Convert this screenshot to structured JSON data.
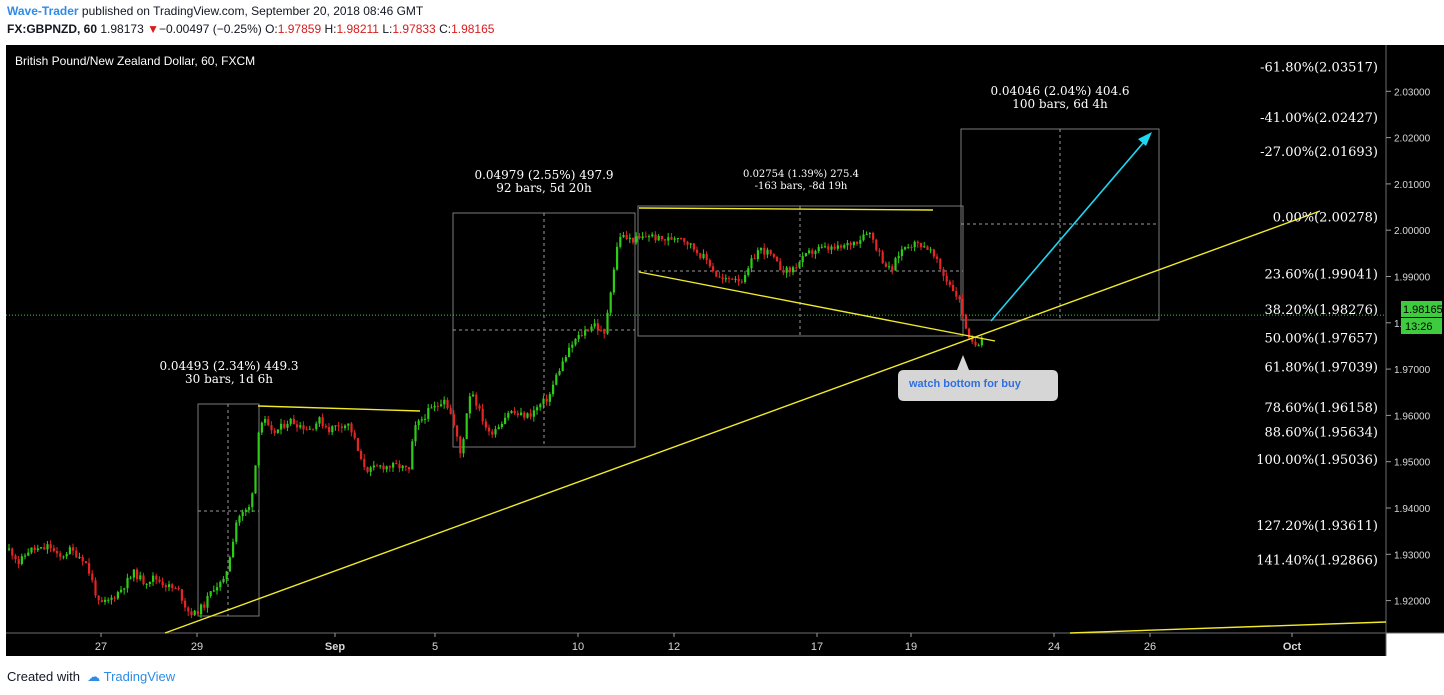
{
  "header": {
    "author": "Wave-Trader",
    "published_text": " published on TradingView.com, September 20, 2018 08:46 GMT",
    "symbol": "FX:GBPNZD, 60",
    "last": "1.98173",
    "change": "−0.00497 (−0.25%)",
    "open_label": "O:",
    "open": "1.97859",
    "high_label": "H:",
    "high": "1.98211",
    "low_label": "L:",
    "low": "1.97833",
    "close_label": "C:",
    "close": "1.98165"
  },
  "footer": {
    "created_with": "Created with",
    "brand": "TradingView"
  },
  "colors": {
    "background": "#000000",
    "up": "#2ecc18",
    "down": "#e32525",
    "trend": "#f0ea2a",
    "arrow": "#1fd6f0",
    "price_line": "#3ecb3e",
    "grid_text": "#d8d8d8",
    "annotation": "#ffffff"
  },
  "chart_data": {
    "type": "candlestick",
    "title": "British Pound/New Zealand Dollar, 60, FXCM",
    "ylim": [
      1.913,
      2.04
    ],
    "y_ticks": [
      "2.03000",
      "2.02000",
      "2.01000",
      "2.00000",
      "1.99000",
      "1.98000",
      "1.97000",
      "1.96000",
      "1.95000",
      "1.94000",
      "1.93000",
      "1.92000"
    ],
    "x_ticks": [
      "27",
      "29",
      "Sep",
      "5",
      "10",
      "12",
      "17",
      "19",
      "24",
      "26",
      "Oct"
    ],
    "price_label": "1.98165",
    "countdown_label": "13:26",
    "fib_levels": [
      {
        "label": "-61.80%(2.03517)",
        "value": 2.03517
      },
      {
        "label": "-41.00%(2.02427)",
        "value": 2.02427
      },
      {
        "label": "-27.00%(2.01693)",
        "value": 2.01693
      },
      {
        "label": "0.00%(2.00278)",
        "value": 2.00278
      },
      {
        "label": "23.60%(1.99041)",
        "value": 1.99041
      },
      {
        "label": "38.20%(1.98276)",
        "value": 1.98276
      },
      {
        "label": "50.00%(1.97657)",
        "value": 1.97657
      },
      {
        "label": "61.80%(1.97039)",
        "value": 1.97039
      },
      {
        "label": "78.60%(1.96158)",
        "value": 1.96158
      },
      {
        "label": "88.60%(1.95634)",
        "value": 1.95634
      },
      {
        "label": "100.00%(1.95036)",
        "value": 1.95036
      },
      {
        "label": "127.20%(1.93611)",
        "value": 1.93611
      },
      {
        "label": "141.40%(1.92866)",
        "value": 1.92866
      }
    ],
    "measurements": [
      {
        "line1": "0.04493 (2.34%) 449.3",
        "line2": "30 bars, 1d 6h"
      },
      {
        "line1": "0.04979 (2.55%) 497.9",
        "line2": "92 bars, 5d 20h"
      },
      {
        "line1": "0.02754 (1.39%) 275.4",
        "line2": "-163 bars, -8d 19h"
      },
      {
        "line1": "0.04046 (2.04%) 404.6",
        "line2": "100 bars, 6d 4h"
      }
    ],
    "callout": "watch bottom for buy",
    "path": [
      [
        0,
        1.931
      ],
      [
        5,
        1.93
      ],
      [
        10,
        1.928
      ],
      [
        20,
        1.931
      ],
      [
        34,
        1.931
      ],
      [
        40,
        1.932
      ],
      [
        50,
        1.929
      ],
      [
        60,
        1.931
      ],
      [
        68,
        1.93
      ],
      [
        75,
        1.929
      ],
      [
        82,
        1.925
      ],
      [
        90,
        1.919
      ],
      [
        100,
        1.92
      ],
      [
        110,
        1.922
      ],
      [
        125,
        1.926
      ],
      [
        135,
        1.924
      ],
      [
        145,
        1.925
      ],
      [
        160,
        1.923
      ],
      [
        170,
        1.922
      ],
      [
        178,
        1.918
      ],
      [
        185,
        1.917
      ],
      [
        195,
        1.919
      ],
      [
        205,
        1.923
      ],
      [
        215,
        1.924
      ],
      [
        222,
        1.931
      ],
      [
        228,
        1.938
      ],
      [
        235,
        1.939
      ],
      [
        240,
        1.94
      ],
      [
        245,
        1.946
      ],
      [
        250,
        1.958
      ],
      [
        255,
        1.959
      ],
      [
        262,
        1.956
      ],
      [
        270,
        1.957
      ],
      [
        280,
        1.959
      ],
      [
        290,
        1.958
      ],
      [
        300,
        1.957
      ],
      [
        310,
        1.959
      ],
      [
        320,
        1.957
      ],
      [
        330,
        1.958
      ],
      [
        340,
        1.958
      ],
      [
        345,
        1.955
      ],
      [
        352,
        1.95
      ],
      [
        360,
        1.948
      ],
      [
        370,
        1.949
      ],
      [
        380,
        1.949
      ],
      [
        390,
        1.949
      ],
      [
        400,
        1.948
      ],
      [
        405,
        1.957
      ],
      [
        412,
        1.959
      ],
      [
        420,
        1.961
      ],
      [
        428,
        1.962
      ],
      [
        435,
        1.964
      ],
      [
        442,
        1.96
      ],
      [
        448,
        1.955
      ],
      [
        452,
        1.951
      ],
      [
        457,
        1.96
      ],
      [
        462,
        1.966
      ],
      [
        470,
        1.961
      ],
      [
        480,
        1.956
      ],
      [
        490,
        1.958
      ],
      [
        500,
        1.961
      ],
      [
        510,
        1.96
      ],
      [
        520,
        1.96
      ],
      [
        530,
        1.962
      ],
      [
        540,
        1.964
      ],
      [
        548,
        1.969
      ],
      [
        555,
        1.972
      ],
      [
        565,
        1.976
      ],
      [
        575,
        1.978
      ],
      [
        585,
        1.98
      ],
      [
        595,
        1.977
      ],
      [
        600,
        1.985
      ],
      [
        605,
        1.992
      ],
      [
        610,
        1.999
      ],
      [
        620,
        1.998
      ],
      [
        630,
        1.998
      ],
      [
        640,
        1.999
      ],
      [
        650,
        1.998
      ],
      [
        660,
        1.998
      ],
      [
        670,
        1.999
      ],
      [
        680,
        1.997
      ],
      [
        690,
        1.995
      ],
      [
        700,
        1.993
      ],
      [
        708,
        1.99
      ],
      [
        715,
        1.989
      ],
      [
        725,
        1.99
      ],
      [
        735,
        1.989
      ],
      [
        742,
        1.993
      ],
      [
        750,
        1.996
      ],
      [
        760,
        1.995
      ],
      [
        770,
        1.992
      ],
      [
        780,
        1.991
      ],
      [
        790,
        1.993
      ],
      [
        800,
        1.995
      ],
      [
        810,
        1.996
      ],
      [
        820,
        1.996
      ],
      [
        830,
        1.996
      ],
      [
        840,
        1.997
      ],
      [
        850,
        1.998
      ],
      [
        857,
        2.0
      ],
      [
        862,
        1.999
      ],
      [
        868,
        1.996
      ],
      [
        875,
        1.993
      ],
      [
        882,
        1.991
      ],
      [
        890,
        1.995
      ],
      [
        898,
        1.997
      ],
      [
        905,
        1.997
      ],
      [
        912,
        1.997
      ],
      [
        920,
        1.996
      ],
      [
        928,
        1.993
      ],
      [
        935,
        1.99
      ],
      [
        942,
        1.988
      ],
      [
        950,
        1.985
      ],
      [
        955,
        1.981
      ],
      [
        960,
        1.976
      ],
      [
        965,
        1.975
      ],
      [
        970,
        1.976
      ],
      [
        974,
        1.978
      ]
    ]
  }
}
